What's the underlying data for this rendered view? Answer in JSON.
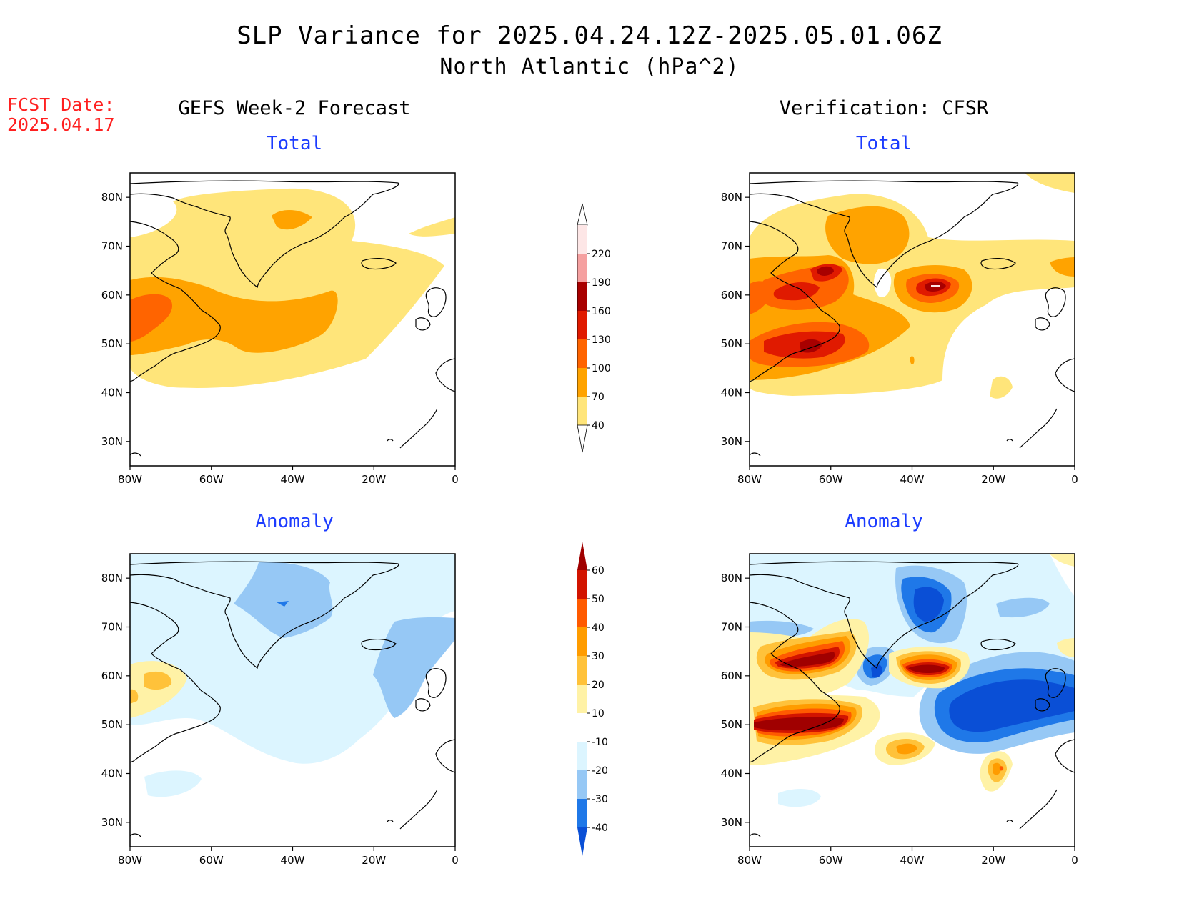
{
  "header": {
    "title_line1": "SLP Variance for 2025.04.24.12Z-2025.05.01.06Z",
    "title_line2": "North Atlantic (hPa^2)",
    "fcst_label": "FCST Date:",
    "fcst_date": "2025.04.17"
  },
  "columns": {
    "left_title": "GEFS Week-2 Forecast",
    "right_title": "Verification: CFSR"
  },
  "panels": {
    "total_label": "Total",
    "anomaly_label": "Anomaly"
  },
  "axes": {
    "lat_labels": [
      "80N",
      "70N",
      "60N",
      "50N",
      "40N",
      "30N"
    ],
    "lat_values": [
      80,
      70,
      60,
      50,
      40,
      30
    ],
    "lon_labels": [
      "80W",
      "60W",
      "40W",
      "20W",
      "0"
    ],
    "lon_values": [
      -80,
      -60,
      -40,
      -20,
      0
    ],
    "lon_range": [
      -80,
      0
    ],
    "lat_range": [
      25,
      85
    ]
  },
  "colorbars": {
    "total": {
      "levels": [
        40,
        70,
        100,
        130,
        160,
        190,
        220
      ],
      "labels": [
        "40",
        "70",
        "100",
        "130",
        "160",
        "190",
        "220"
      ],
      "colors": [
        "#ffe57a",
        "#ffa300",
        "#ff6400",
        "#e01a00",
        "#a80000",
        "#f5a0a0",
        "#fde6e6"
      ]
    },
    "anomaly": {
      "levels": [
        -40,
        -30,
        -20,
        -10,
        10,
        20,
        30,
        40,
        50,
        60
      ],
      "labels": [
        "-40",
        "-30",
        "-20",
        "-10",
        "10",
        "20",
        "30",
        "40",
        "50",
        "60"
      ],
      "colors": [
        "#0a4fd6",
        "#1f78e8",
        "#96c8f5",
        "#dcf5ff",
        "#ffffff",
        "#fff2a6",
        "#ffc23a",
        "#ff9c00",
        "#ff5a00",
        "#d21400",
        "#a00000"
      ]
    }
  },
  "colors": {
    "title_blue": "#1c3cff",
    "fcst_red": "#ff2020",
    "coast": "#000000"
  }
}
